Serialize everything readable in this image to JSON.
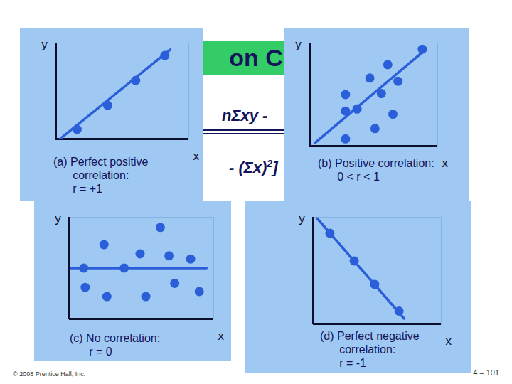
{
  "chart_data": [
    {
      "type": "scatter",
      "title": "(a) Perfect positive correlation:",
      "subtitle": "r = +1",
      "x_label": "x",
      "y_label": "y",
      "x": [
        1.6,
        3.9,
        6.0,
        8.2
      ],
      "y": [
        1.0,
        3.5,
        6.1,
        8.7
      ],
      "fit_line": {
        "x": [
          0.3,
          8.6
        ],
        "y": [
          0.0,
          9.3
        ]
      },
      "xlim": [
        0,
        10
      ],
      "ylim": [
        0,
        10
      ],
      "tick_labels": false,
      "color": "#2b5fd9"
    },
    {
      "type": "scatter",
      "title": "(b) Positive correlation:",
      "subtitle": "0 < r < 1",
      "x_label": "x",
      "y_label": "y",
      "x": [
        2.8,
        2.8,
        2.8,
        3.7,
        4.7,
        5.6,
        6.1,
        6.5,
        5.1,
        6.9,
        8.8
      ],
      "y": [
        0.7,
        3.4,
        5.0,
        3.6,
        6.6,
        5.1,
        7.9,
        3.1,
        1.7,
        6.3,
        9.4
      ],
      "fit_line": {
        "x": [
          0.4,
          8.8
        ],
        "y": [
          0.3,
          9.1
        ]
      },
      "xlim": [
        0,
        10
      ],
      "ylim": [
        0,
        10
      ],
      "tick_labels": false,
      "color": "#2b5fd9"
    },
    {
      "type": "scatter",
      "title": "(c) No correlation:",
      "subtitle": "r = 0",
      "x_label": "x",
      "y_label": "y",
      "x": [
        6.3,
        2.4,
        4.9,
        6.9,
        8.4,
        1.0,
        3.8,
        1.1,
        2.6,
        5.3,
        7.3,
        9.0
      ],
      "y": [
        9.0,
        7.3,
        6.4,
        6.2,
        5.9,
        5.0,
        5.0,
        3.1,
        2.2,
        2.2,
        3.5,
        2.7
      ],
      "fit_line": {
        "x": [
          0.1,
          9.5
        ],
        "y": [
          5.0,
          5.0
        ]
      },
      "xlim": [
        0,
        10
      ],
      "ylim": [
        0,
        10
      ],
      "tick_labels": false,
      "color": "#2b5fd9"
    },
    {
      "type": "scatter",
      "title": "(d) Perfect negative correlation:",
      "subtitle": "r = -1",
      "x_label": "x",
      "y_label": "y",
      "x": [
        1.3,
        3.2,
        4.8,
        6.7
      ],
      "y": [
        8.5,
        5.9,
        3.7,
        1.2
      ],
      "fit_line": {
        "x": [
          0.3,
          7.1
        ],
        "y": [
          9.9,
          0.5
        ]
      },
      "xlim": [
        0,
        10
      ],
      "ylim": [
        0,
        10
      ],
      "tick_labels": false,
      "color": "#2b5fd9"
    }
  ],
  "slide": {
    "title_fragment": "on C",
    "formula_fragments": [
      "nΣxy -",
      "- (Σx)",
      "2",
      "]"
    ],
    "footer_left": "© 2008 Prentice Hall, Inc.",
    "footer_right": "4 – 101"
  }
}
